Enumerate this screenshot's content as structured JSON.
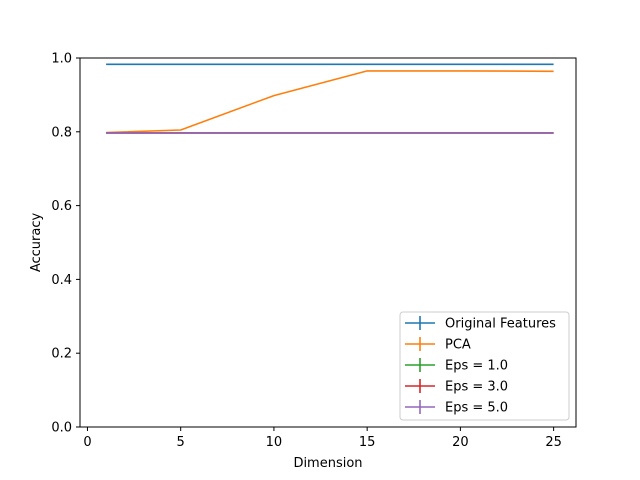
{
  "chart_data": {
    "type": "line",
    "title": "",
    "xlabel": "Dimension",
    "ylabel": "Accuracy",
    "xlim": [
      -0.4,
      26.2
    ],
    "ylim": [
      0.0,
      1.0
    ],
    "xticks": [
      0,
      5,
      10,
      15,
      20,
      25
    ],
    "yticks": [
      0.0,
      0.2,
      0.4,
      0.6,
      0.8,
      1.0
    ],
    "xtick_labels": [
      "0",
      "5",
      "10",
      "15",
      "20",
      "25"
    ],
    "ytick_labels": [
      "0.0",
      "0.2",
      "0.4",
      "0.6",
      "0.8",
      "1.0"
    ],
    "grid": false,
    "legend_position": "bottom-right",
    "series": [
      {
        "name": "Original Features",
        "color": "#1f77b4",
        "x": [
          1,
          5,
          10,
          15,
          20,
          25
        ],
        "y": [
          0.983,
          0.983,
          0.983,
          0.983,
          0.983,
          0.983
        ]
      },
      {
        "name": "PCA",
        "color": "#ff7f0e",
        "x": [
          1,
          5,
          10,
          15,
          20,
          25
        ],
        "y": [
          0.798,
          0.805,
          0.898,
          0.965,
          0.965,
          0.964
        ]
      },
      {
        "name": "Eps = 1.0",
        "color": "#2ca02c",
        "x": [
          1,
          5,
          10,
          15,
          20,
          25
        ],
        "y": [
          0.797,
          0.797,
          0.797,
          0.797,
          0.797,
          0.797
        ]
      },
      {
        "name": "Eps = 3.0",
        "color": "#d62728",
        "x": [
          1,
          5,
          10,
          15,
          20,
          25
        ],
        "y": [
          0.797,
          0.797,
          0.797,
          0.797,
          0.797,
          0.797
        ]
      },
      {
        "name": "Eps = 5.0",
        "color": "#9467bd",
        "x": [
          1,
          5,
          10,
          15,
          20,
          25
        ],
        "y": [
          0.797,
          0.797,
          0.797,
          0.797,
          0.797,
          0.797
        ]
      }
    ]
  }
}
